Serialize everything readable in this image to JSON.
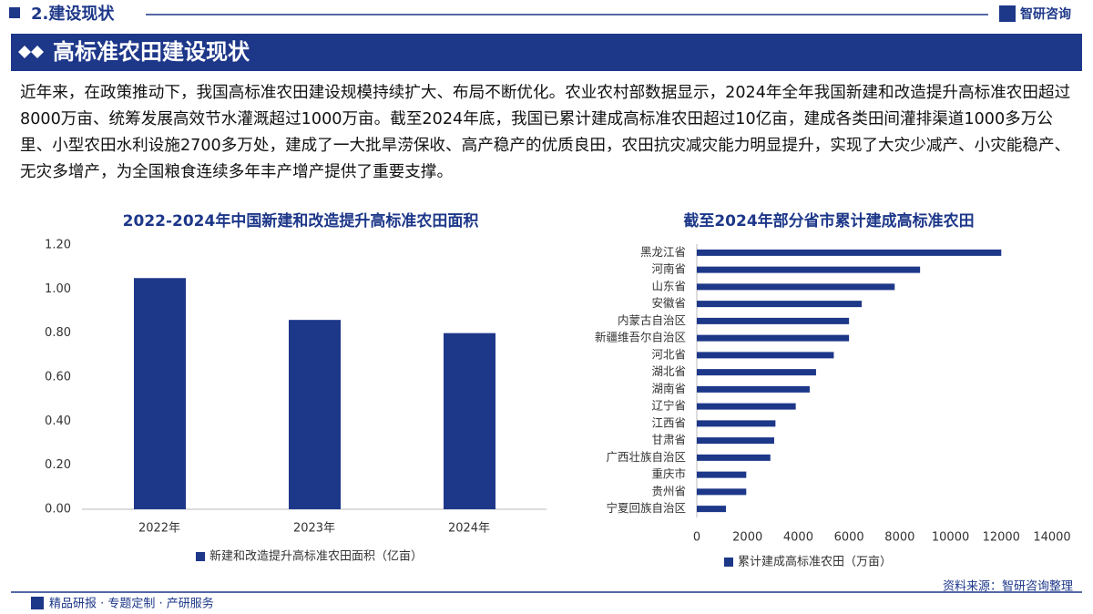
{
  "header": {
    "section": "2.建设现状",
    "logo": "智研咨询",
    "title": "高标准农田建设现状"
  },
  "paragraph": "近年来，在政策推动下，我国高标准农田建设规模持续扩大、布局不断优化。农业农村部数据显示，2024年全年我国新建和改造提升高标准农田超过8000万亩、统筹发展高效节水灌溉超过1000万亩。截至2024年底，我国已累计建成高标准农田超过10亿亩，建成各类田间灌排渠道1000多万公里、小型农田水利设施2700多万处，建成了一大批旱涝保收、高产稳产的优质良田，农田抗灾减灾能力明显提升，实现了大灾少减产、小灾能稳产、无灾多增产，为全国粮食连续多年丰产增产提供了重要支撑。",
  "chart_data": [
    {
      "type": "bar",
      "title": "2022-2024年中国新建和改造提升高标准农田面积",
      "categories": [
        "2022年",
        "2023年",
        "2024年"
      ],
      "series": [
        {
          "name": "新建和改造提升高标准农田面积（亿亩）",
          "color": "#1d3789",
          "values": [
            1.05,
            0.86,
            0.8
          ]
        }
      ],
      "ylim": [
        0,
        1.2
      ],
      "yticks": [
        {
          "value": 0,
          "label": "0.00"
        },
        {
          "value": 0.2,
          "label": "0.20"
        },
        {
          "value": 0.4,
          "label": "0.40"
        },
        {
          "value": 0.6,
          "label": "0.60"
        },
        {
          "value": 0.8,
          "label": "0.80"
        },
        {
          "value": 1,
          "label": "1.00"
        },
        {
          "value": 1.2,
          "label": "1.20"
        }
      ],
      "grid": false
    },
    {
      "type": "barh",
      "title": "截至2024年部分省市累计建成高标准农田",
      "categories": [
        "黑龙江省",
        "河南省",
        "山东省",
        "安徽省",
        "内蒙古自治区",
        "新疆维吾尔自治区",
        "河北省",
        "湖北省",
        "湖南省",
        "辽宁省",
        "江西省",
        "甘肃省",
        "广西壮族自治区",
        "重庆市",
        "贵州省",
        "宁夏回族自治区"
      ],
      "series": [
        {
          "name": "累计建成高标准农田（万亩）",
          "color": "#1d3789",
          "values": [
            12000,
            8800,
            7800,
            6500,
            6000,
            6000,
            5400,
            4700,
            4450,
            3900,
            3100,
            3050,
            2900,
            1950,
            1950,
            1150
          ]
        }
      ],
      "xlim": [
        0,
        14000
      ],
      "xticks": [
        0,
        2000,
        4000,
        6000,
        8000,
        10000,
        12000,
        14000
      ],
      "grid": false
    }
  ],
  "footer": {
    "source": "资料来源：智研咨询整理",
    "services": "精品研报 · 专题定制 · 产研服务"
  }
}
